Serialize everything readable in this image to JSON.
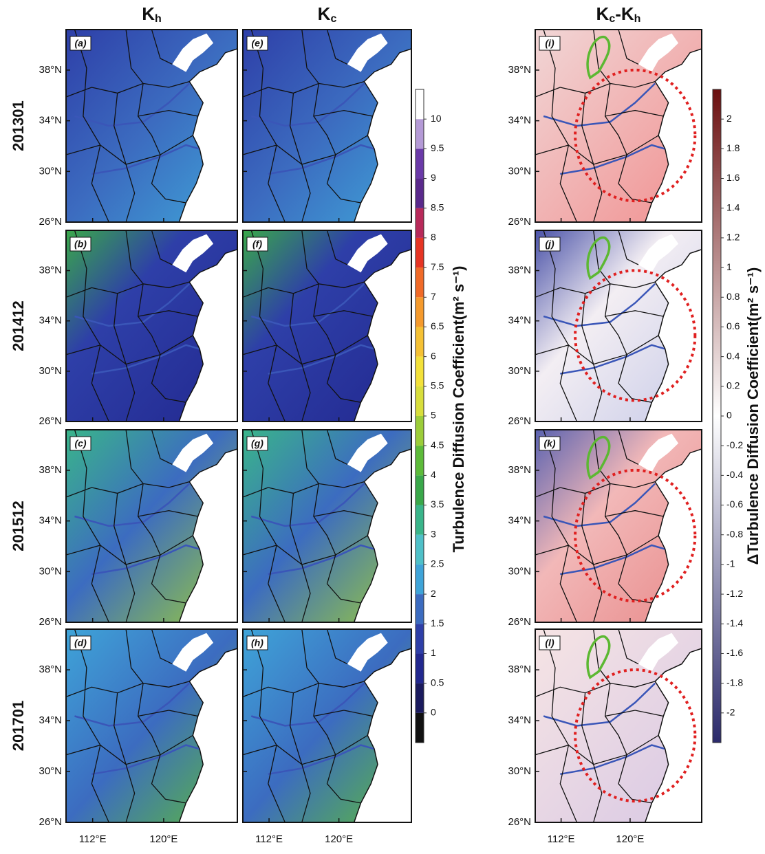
{
  "columns": [
    [
      {
        "text": "K"
      },
      {
        "sub": "h"
      }
    ],
    [
      {
        "text": "K"
      },
      {
        "sub": "c"
      }
    ],
    [
      {
        "text": "K"
      },
      {
        "sub": "c"
      },
      {
        "text": "-K"
      },
      {
        "sub": "h"
      }
    ]
  ],
  "rows": [
    "201301",
    "201412",
    "201512",
    "201701"
  ],
  "panel_labels": [
    [
      "(a)",
      "(e)",
      "(i)"
    ],
    [
      "(b)",
      "(f)",
      "(j)"
    ],
    [
      "(c)",
      "(g)",
      "(k)"
    ],
    [
      "(d)",
      "(h)",
      "(l)"
    ]
  ],
  "lat_range": [
    26,
    41.2
  ],
  "lat_ticks": [
    {
      "value": 26,
      "label": "26°N"
    },
    {
      "value": 30,
      "label": "30°N"
    },
    {
      "value": 34,
      "label": "34°N"
    },
    {
      "value": 38,
      "label": "38°N"
    }
  ],
  "lon_range": [
    109,
    128.3
  ],
  "lon_ticks": [
    {
      "value": 112,
      "label": "112°E"
    },
    {
      "value": 120,
      "label": "120°E"
    }
  ],
  "colorbars": [
    {
      "label": "Turbulence Diffusion Coefficient(m² s⁻¹)",
      "lim": [
        -0.5,
        10.5
      ],
      "ticks": [
        0,
        0.5,
        1,
        1.5,
        2,
        2.5,
        3,
        3.5,
        4,
        4.5,
        5,
        5.5,
        6,
        6.5,
        7,
        7.5,
        8,
        8.5,
        9,
        9.5,
        10
      ],
      "colors": [
        "#111111",
        "#1b1b5e",
        "#22288f",
        "#2e3fa8",
        "#3c6cc0",
        "#3fa4d8",
        "#4fc0c8",
        "#3ab58a",
        "#3aa84a",
        "#5dbb3a",
        "#9ccd3a",
        "#d8de3c",
        "#f3e13a",
        "#f5c134",
        "#f59a2d",
        "#f06a28",
        "#e63524",
        "#b82a5a",
        "#5a2a8c",
        "#6a3aa8",
        "#b49ad6",
        "#ffffff"
      ]
    },
    {
      "label": "ΔTurbulence Diffusion Coefficient(m² s⁻¹)",
      "lim": [
        -2.2,
        2.2
      ],
      "ticks": [
        2,
        1.8,
        1.6,
        1.4,
        1.2,
        1,
        0.8,
        0.6,
        0.4,
        0.2,
        0,
        -0.2,
        -0.4,
        -0.6,
        -0.8,
        -1,
        -1.2,
        -1.4,
        -1.6,
        -1.8,
        -2
      ],
      "colors": [
        "#2b2a6b",
        "#ffffff",
        "#6b0f0f"
      ]
    }
  ]
}
